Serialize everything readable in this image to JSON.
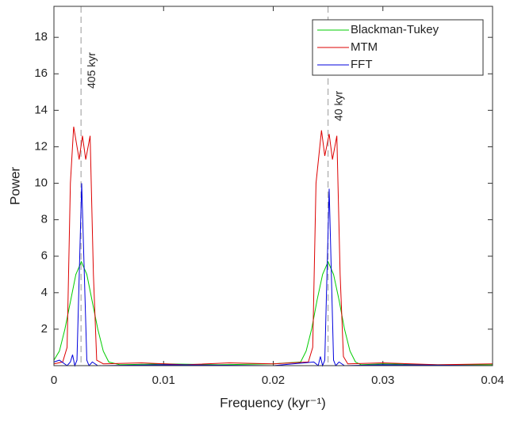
{
  "chart_data": {
    "type": "line",
    "xlabel": "Frequency (kyr⁻¹)",
    "ylabel": "Power",
    "xlim": [
      0,
      0.04
    ],
    "ylim": [
      0,
      19.7
    ],
    "xticks": [
      0,
      0.01,
      0.02,
      0.03,
      0.04
    ],
    "yticks": [
      2,
      4,
      6,
      8,
      10,
      12,
      14,
      16,
      18
    ],
    "legend": "upper right",
    "annotations": [
      {
        "x": 0.00247,
        "text": "405 kyr"
      },
      {
        "x": 0.025,
        "text": "40 kyr"
      }
    ],
    "series": [
      {
        "name": "Blackman-Tukey",
        "color": "#00cc00",
        "x": [
          0,
          0.0005,
          0.001,
          0.0015,
          0.002,
          0.0025,
          0.003,
          0.0035,
          0.004,
          0.0045,
          0.005,
          0.006,
          0.01,
          0.015,
          0.02,
          0.0225,
          0.023,
          0.0235,
          0.024,
          0.0245,
          0.025,
          0.0255,
          0.026,
          0.0265,
          0.027,
          0.0275,
          0.028,
          0.03,
          0.035,
          0.04
        ],
        "values": [
          0.3,
          0.8,
          2,
          3.5,
          5,
          5.7,
          5,
          3.5,
          2,
          0.8,
          0.2,
          0.05,
          0.1,
          0.05,
          0.1,
          0.2,
          0.8,
          2,
          3.6,
          5,
          5.7,
          5,
          3.6,
          2,
          0.8,
          0.2,
          0.05,
          0.1,
          0.05,
          0.05
        ]
      },
      {
        "name": "MTM",
        "color": "#dd0000",
        "x": [
          0,
          0.0008,
          0.0012,
          0.0015,
          0.0018,
          0.0023,
          0.0026,
          0.0029,
          0.0033,
          0.0036,
          0.0039,
          0.0045,
          0.008,
          0.012,
          0.016,
          0.02,
          0.0232,
          0.0236,
          0.0239,
          0.0244,
          0.0247,
          0.0251,
          0.0254,
          0.0258,
          0.0261,
          0.0264,
          0.0268,
          0.03,
          0.035,
          0.04
        ],
        "values": [
          0.1,
          0.2,
          1,
          10,
          13.1,
          11.3,
          12.6,
          11.3,
          12.6,
          5,
          0.3,
          0.1,
          0.15,
          0.05,
          0.15,
          0.1,
          0.2,
          1,
          10,
          12.9,
          11.5,
          12.7,
          11.3,
          12.6,
          5,
          0.5,
          0.1,
          0.15,
          0.05,
          0.1
        ]
      },
      {
        "name": "FFT",
        "color": "#0000dd",
        "x": [
          0,
          0.0005,
          0.0012,
          0.0015,
          0.0017,
          0.0019,
          0.0021,
          0.00253,
          0.003,
          0.0032,
          0.0035,
          0.004,
          0.01,
          0.02,
          0.0237,
          0.0241,
          0.0243,
          0.0245,
          0.0247,
          0.0251,
          0.0255,
          0.0257,
          0.026,
          0.0265,
          0.03,
          0.04
        ],
        "values": [
          0.2,
          0.3,
          0,
          0.2,
          0.6,
          0,
          0.3,
          10,
          0.3,
          0,
          0.2,
          0,
          0.05,
          0,
          0.2,
          0,
          0.5,
          0,
          0.3,
          9.7,
          0.3,
          0,
          0.2,
          0,
          0.05,
          0
        ]
      }
    ]
  }
}
